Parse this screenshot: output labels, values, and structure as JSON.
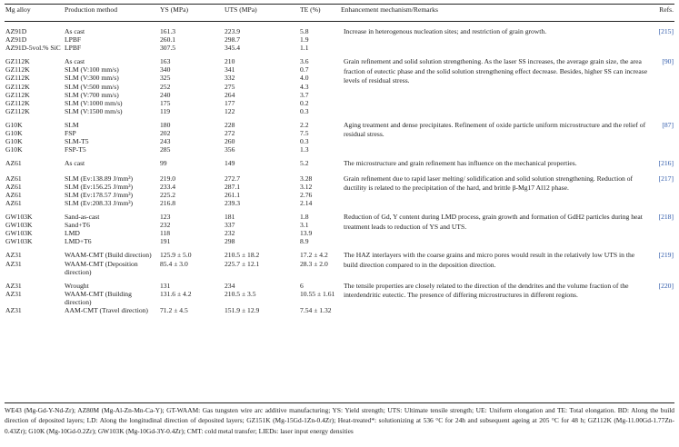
{
  "headers": [
    "Mg alloy",
    "Production method",
    "YS (MPa)",
    "UTS (MPa)",
    "TE (%)",
    "Enhancement mechanism/Remarks",
    "Refs."
  ],
  "groups": [
    {
      "rows": [
        [
          "AZ91D",
          "As cast",
          "161.3",
          "223.9",
          "5.8"
        ],
        [
          "AZ91D",
          "LPBF",
          "260.1",
          "298.7",
          "1.9"
        ],
        [
          "AZ91D-5vol.% SiC",
          "LPBF",
          "307.5",
          "345.4",
          "1.1"
        ]
      ],
      "remark": "Increase in heterogenous nucleation sites; and restriction of grain growth.",
      "ref": "[215]"
    },
    {
      "rows": [
        [
          "GZ112K",
          "As cast",
          "163",
          "210",
          "3.6"
        ],
        [
          "GZ112K",
          "SLM (V:100 mm/s)",
          "340",
          "341",
          "0.7"
        ],
        [
          "GZ112K",
          "SLM (V:300 mm/s)",
          "325",
          "332",
          "4.0"
        ],
        [
          "GZ112K",
          "SLM (V:500 mm/s)",
          "252",
          "275",
          "4.3"
        ],
        [
          "GZ112K",
          "SLM (V:700 mm/s)",
          "240",
          "264",
          "3.7"
        ],
        [
          "GZ112K",
          "SLM (V:1000 mm/s)",
          "175",
          "177",
          "0.2"
        ],
        [
          "GZ112K",
          "SLM (V:1500 mm/s)",
          "119",
          "122",
          "0.3"
        ]
      ],
      "remark": "Grain refinement and solid solution strengthening. As the laser SS increases, the average grain size, the area fraction of eutectic phase and the solid solution strengthening effect decrease. Besides, higher SS can increase levels of residual stress.",
      "ref": "[90]"
    },
    {
      "rows": [
        [
          "G10K",
          "SLM",
          "180",
          "228",
          "2.2"
        ],
        [
          "G10K",
          "FSP",
          "202",
          "272",
          "7.5"
        ],
        [
          "G10K",
          "SLM-T5",
          "243",
          "260",
          "0.3"
        ],
        [
          "G10K",
          "FSP-T5",
          "285",
          "356",
          "1.3"
        ]
      ],
      "remark": "Aging treatment and dense precipitates. Refinement of oxide particle uniform microstructure and the relief of residual stress.",
      "ref": "[87]"
    },
    {
      "rows": [
        [
          "AZ61",
          "As cast",
          "99",
          "149",
          "5.2"
        ]
      ],
      "remark": "The microstructure and grain refinement has influence on the mechanical properties.",
      "ref": "[216]"
    },
    {
      "rows": [
        [
          "AZ61",
          "SLM (Ev:138.89 J/mm³)",
          "219.0",
          "272.7",
          "3.28"
        ],
        [
          "AZ61",
          "SLM (Ev:156.25 J/mm³)",
          "233.4",
          "287.1",
          "3.12"
        ],
        [
          "AZ61",
          "SLM (Ev:178.57 J/mm³)",
          "225.2",
          "261.1",
          "2.76"
        ],
        [
          "AZ61",
          "SLM (Ev:208.33 J/mm³)",
          "216.8",
          "239.3",
          "2.14"
        ]
      ],
      "remark": "Grain refinement due to rapid laser melting/ solidification and solid solution strengthening. Reduction of ductility is related to the precipitation of the hard, and brittle β-Mg17 Al12 phase.",
      "ref": "[217]"
    },
    {
      "rows": [
        [
          "GW103K",
          "Sand-as-cast",
          "123",
          "181",
          "1.8"
        ],
        [
          "GW103K",
          "Sand+T6",
          "232",
          "337",
          "3.1"
        ],
        [
          "GW103K",
          "LMD",
          "118",
          "232",
          "13.9"
        ],
        [
          "GW103K",
          "LMD+T6",
          "191",
          "298",
          "8.9"
        ]
      ],
      "remark": "Reduction of Gd, Y content during LMD process, grain growth and formation of GdH2 particles during heat treatment leads to reduction of YS and UTS.",
      "ref": "[218]"
    },
    {
      "rows": [
        [
          "AZ31",
          "WAAM-CMT (Build direction)",
          "125.9 ± 5.0",
          "210.5 ± 18.2",
          "17.2 ± 4.2"
        ],
        [
          "AZ31",
          "WAAM-CMT (Deposition direction)",
          "85.4 ± 3.0",
          "225.7 ± 12.1",
          "28.3 ± 2.0"
        ]
      ],
      "remark": "The HAZ interlayers with the coarse grains and micro pores would result in the relatively low UTS in the build direction compared to in the deposition direction.",
      "ref": "[219]"
    },
    {
      "rows": [
        [
          "AZ31",
          "Wrought",
          "131",
          "234",
          "6"
        ],
        [
          "AZ31",
          "WAAM-CMT (Building direction)",
          "131.6 ± 4.2",
          "210.5 ± 3.5",
          "10.55 ± 1.61"
        ],
        [
          "AZ31",
          "AAM-CMT (Travel direction)",
          "71.2 ± 4.5",
          "151.9 ± 12.9",
          "7.54 ± 1.32"
        ]
      ],
      "remark": "The tensile properties are closely related to the direction of the dendrites and the volume fraction of the interdendritic eutectic. The presence of differing microstructures in different regions.",
      "ref": "[220]"
    }
  ],
  "footnote": "WE43 (Mg-Gd-Y-Nd-Zr); AZ80M (Mg-Al-Zn-Mn-Ca-Y); GT-WAAM: Gas tungsten wire arc additive manufacturing; YS: Yield strength; UTS: Ultimate tensile strength; UE: Uniform elongation and TE: Total elongation. BD: Along the build direction of deposited layers; LD: Along the longitudinal direction of deposited layers; GZ151K (Mg-15Gd-1Zn-0.4Zr); Heat-treated*: solutionizing at 536 °C for 24h and subsequent ageing at 205 °C for 48 h; GZ112K (Mg-11.00Gd-1.77Zn-0.43Zr); G10K (Mg-10Gd-0.2Zr); GW103K (Mg-10Gd-3Y-0.4Zr); CMT: cold metal transfer; LIEDs: laser input energy densities",
  "colors": {
    "ref_link": "#2a56a8",
    "rule": "#222222"
  }
}
